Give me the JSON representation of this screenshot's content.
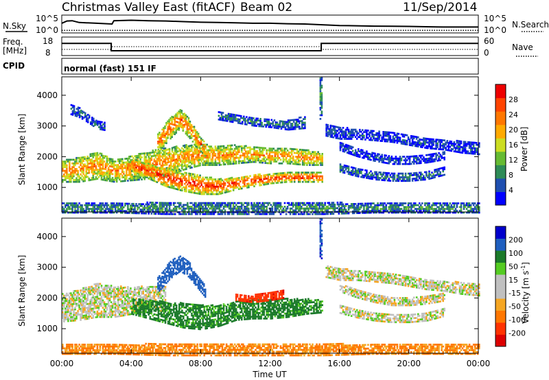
{
  "header": {
    "title": "Christmas Valley East (fitACF)",
    "beam": "Beam 02",
    "date": "11/Sep/2014"
  },
  "top_panels": {
    "nsky_label": "N.Sky",
    "nsearch_label": "N.Search",
    "noise_ticks_left": [
      "10^5",
      "10^0"
    ],
    "noise_ticks_right": [
      "10^5",
      "10^0"
    ],
    "freq_label_1": "Freq.",
    "freq_label_2": "[MHz]",
    "freq_ticks": [
      "18",
      "8"
    ],
    "nave_label": "Nave",
    "nave_ticks": [
      "60",
      "0"
    ],
    "cpid_label": "CPID",
    "cpid_text": "normal (fast) 151 IF"
  },
  "colors": {
    "power": [
      "#0000ff",
      "#1f4fb0",
      "#2e8b57",
      "#66bb33",
      "#ccdd22",
      "#ffaa00",
      "#ff7700",
      "#ff4400",
      "#ee0000"
    ],
    "velocity": [
      "#0000cc",
      "#1f5fbf",
      "#1b7a2a",
      "#55cc22",
      "#c0c0c0",
      "#c0c0c0",
      "#f5a623",
      "#ff7700",
      "#ff3300",
      "#dd0000"
    ]
  },
  "chart_data": [
    {
      "type": "line",
      "panel": "noise",
      "series": [
        {
          "name": "N.Sky",
          "x": [
            0,
            0.3,
            0.6,
            1,
            2,
            2.9,
            3,
            4,
            5,
            6,
            7,
            8,
            9,
            10,
            11,
            12,
            13,
            14,
            15,
            16,
            17,
            18,
            19,
            20,
            21,
            22,
            23,
            24
          ],
          "y": [
            0.55,
            0.7,
            0.72,
            0.6,
            0.55,
            0.5,
            0.72,
            0.75,
            0.72,
            0.7,
            0.66,
            0.62,
            0.6,
            0.58,
            0.55,
            0.55,
            0.52,
            0.5,
            0.45,
            0.4,
            0.38,
            0.36,
            0.35,
            0.34,
            0.32,
            0.3,
            0.3,
            0.3
          ]
        },
        {
          "name": "N.Search",
          "x": [
            0,
            24
          ],
          "y": [
            0.08,
            0.08
          ]
        }
      ]
    },
    {
      "type": "line",
      "panel": "frequency",
      "series": [
        {
          "name": "Freq. [MHz]",
          "x": [
            0,
            2.85,
            2.85,
            14.95,
            14.95,
            24
          ],
          "y": [
            15,
            15,
            10.5,
            10.5,
            15,
            15
          ]
        },
        {
          "name": "Nave",
          "x": [
            0,
            2.85,
            2.85,
            14.95,
            14.95,
            24
          ],
          "y": [
            20,
            20,
            30,
            30,
            20,
            20
          ]
        }
      ]
    },
    {
      "type": "heatmap",
      "title": "Power [dB]",
      "xlabel": "",
      "ylabel": "Slant Range [km]",
      "xlim": [
        0,
        24
      ],
      "ylim": [
        200,
        4600
      ],
      "yticks": [
        "1000",
        "2000",
        "3000",
        "4000"
      ],
      "colorbar": {
        "label": "Power [dB]",
        "ticks": [
          "4",
          "8",
          "12",
          "16",
          "20",
          "24",
          "28"
        ]
      },
      "bands": [
        {
          "name": "main echo",
          "x": [
            0,
            1,
            2,
            3,
            4,
            5,
            6,
            7,
            8,
            9,
            10,
            11,
            12,
            13,
            14,
            15
          ],
          "center": [
            1500,
            1550,
            1700,
            1500,
            1600,
            1700,
            1800,
            1950,
            2050,
            2000,
            2050,
            2050,
            2000,
            2000,
            1950,
            1900
          ],
          "width": [
            350,
            400,
            450,
            350,
            400,
            450,
            450,
            400,
            350,
            300,
            300,
            250,
            250,
            250,
            250,
            200
          ],
          "level": 0.72
        },
        {
          "name": "descending arc",
          "x": [
            4,
            5,
            6,
            7,
            8,
            9,
            10,
            11,
            12,
            13,
            14,
            15
          ],
          "center": [
            1700,
            1500,
            1300,
            1150,
            1050,
            1000,
            1100,
            1200,
            1250,
            1300,
            1300,
            1300
          ],
          "width": [
            200,
            250,
            300,
            300,
            300,
            250,
            200,
            200,
            150,
            150,
            150,
            150
          ],
          "level": 0.9
        },
        {
          "name": "upper arc",
          "x": [
            5.5,
            6.2,
            6.8,
            7.3,
            7.8,
            8.3
          ],
          "center": [
            2400,
            2900,
            3200,
            2900,
            2500,
            2150
          ],
          "width": [
            300,
            350,
            300,
            300,
            250,
            200
          ],
          "level": 0.8
        },
        {
          "name": "high scatter",
          "x": [
            0.5,
            1,
            1.5,
            2,
            2.5
          ],
          "center": [
            3500,
            3400,
            3200,
            3000,
            2950
          ],
          "width": [
            150,
            150,
            120,
            120,
            120
          ],
          "level": 0.2
        },
        {
          "name": "scatter 10-14",
          "x": [
            9,
            10,
            11,
            12,
            13,
            14
          ],
          "center": [
            3300,
            3200,
            3100,
            3050,
            3000,
            3100
          ],
          "width": [
            120,
            120,
            120,
            120,
            150,
            200
          ],
          "level": 0.25
        },
        {
          "name": "late upper",
          "x": [
            15.2,
            16,
            17,
            18,
            19,
            20,
            21,
            22,
            23,
            24
          ],
          "center": [
            2850,
            2750,
            2700,
            2650,
            2600,
            2500,
            2400,
            2350,
            2300,
            2250
          ],
          "width": [
            200,
            200,
            150,
            150,
            150,
            150,
            150,
            150,
            200,
            200
          ],
          "level": 0.15
        },
        {
          "name": "late middle",
          "x": [
            16,
            17,
            18,
            19,
            20,
            21,
            22
          ],
          "center": [
            2300,
            2100,
            1950,
            1850,
            1850,
            1900,
            2000
          ],
          "width": [
            120,
            120,
            120,
            120,
            120,
            120,
            120
          ],
          "level": 0.15
        },
        {
          "name": "late lower",
          "x": [
            16,
            17,
            18,
            19,
            20,
            21,
            22
          ],
          "center": [
            1600,
            1450,
            1350,
            1300,
            1300,
            1350,
            1500
          ],
          "width": [
            120,
            120,
            120,
            120,
            120,
            120,
            120
          ],
          "level": 0.25
        },
        {
          "name": "ground",
          "x": [
            0,
            3,
            6,
            9,
            12,
            15,
            18,
            21,
            24
          ],
          "center": [
            300,
            300,
            300,
            300,
            300,
            300,
            300,
            300,
            300
          ],
          "width": [
            150,
            150,
            200,
            200,
            200,
            200,
            150,
            150,
            150
          ],
          "level": 0.3
        },
        {
          "name": "spike 15",
          "x": [
            14.85,
            15.0
          ],
          "center": [
            3900,
            3900
          ],
          "width": [
            700,
            700
          ],
          "level": 0.3
        }
      ]
    },
    {
      "type": "heatmap",
      "title": "Velocity [m s^-1]",
      "xlabel": "Time UT",
      "ylabel": "Slant Range [km]",
      "xlim": [
        0,
        24
      ],
      "ylim": [
        200,
        4600
      ],
      "xticks": [
        "00:00",
        "04:00",
        "08:00",
        "12:00",
        "16:00",
        "20:00",
        "00:00"
      ],
      "yticks": [
        "1000",
        "2000",
        "3000",
        "4000"
      ],
      "colorbar": {
        "label": "Velocity [m s^-1]",
        "ticks": [
          "200",
          "100",
          "50",
          "15",
          "-15",
          "-50",
          "-100",
          "-200"
        ]
      },
      "bands": [
        {
          "name": "gray band",
          "x": [
            0,
            1,
            2,
            3,
            4,
            5,
            6
          ],
          "center": [
            1650,
            1750,
            1900,
            1850,
            1900,
            1950,
            1950
          ],
          "width": [
            450,
            500,
            550,
            500,
            450,
            400,
            400
          ],
          "v": 0
        },
        {
          "name": "green band",
          "x": [
            4,
            5,
            6,
            7,
            8,
            9,
            10,
            11,
            12,
            13,
            14,
            15
          ],
          "center": [
            1700,
            1600,
            1500,
            1400,
            1350,
            1400,
            1550,
            1600,
            1600,
            1650,
            1700,
            1700
          ],
          "width": [
            250,
            300,
            350,
            400,
            400,
            350,
            300,
            300,
            300,
            300,
            250,
            200
          ],
          "v": 70
        },
        {
          "name": "red band",
          "x": [
            10,
            11,
            12,
            12.8
          ],
          "center": [
            2000,
            1950,
            2050,
            2100
          ],
          "width": [
            100,
            120,
            150,
            120
          ],
          "v": -180
        },
        {
          "name": "blue arc",
          "x": [
            5.5,
            6.2,
            6.8,
            7.3,
            7.8,
            8.3
          ],
          "center": [
            2400,
            2900,
            3100,
            2900,
            2500,
            2150
          ],
          "width": [
            250,
            300,
            250,
            250,
            200,
            200
          ],
          "v": 150
        },
        {
          "name": "late gray upper",
          "x": [
            15.2,
            16,
            17,
            18,
            19,
            20,
            21,
            22,
            23,
            24
          ],
          "center": [
            2850,
            2750,
            2700,
            2650,
            2600,
            2500,
            2400,
            2350,
            2300,
            2250
          ],
          "width": [
            200,
            200,
            150,
            150,
            150,
            150,
            150,
            150,
            200,
            200
          ],
          "v": 0
        },
        {
          "name": "late gray middle",
          "x": [
            16,
            17,
            18,
            19,
            20,
            21,
            22
          ],
          "center": [
            2300,
            2100,
            1950,
            1850,
            1850,
            1900,
            2000
          ],
          "width": [
            120,
            120,
            120,
            120,
            120,
            120,
            120
          ],
          "v": 0
        },
        {
          "name": "late gray lower",
          "x": [
            16,
            17,
            18,
            19,
            20,
            21,
            22
          ],
          "center": [
            1600,
            1450,
            1350,
            1300,
            1300,
            1350,
            1500
          ],
          "width": [
            120,
            120,
            120,
            120,
            120,
            120,
            120
          ],
          "v": 0
        },
        {
          "name": "ground",
          "x": [
            0,
            3,
            6,
            9,
            12,
            15,
            18,
            21,
            24
          ],
          "center": [
            300,
            300,
            300,
            300,
            300,
            300,
            300,
            300,
            300
          ],
          "width": [
            150,
            150,
            200,
            200,
            200,
            200,
            150,
            150,
            150
          ],
          "v": -60
        },
        {
          "name": "spike 15",
          "x": [
            14.85,
            15.0
          ],
          "center": [
            3900,
            3900
          ],
          "width": [
            700,
            700
          ],
          "v": 180
        }
      ]
    }
  ]
}
